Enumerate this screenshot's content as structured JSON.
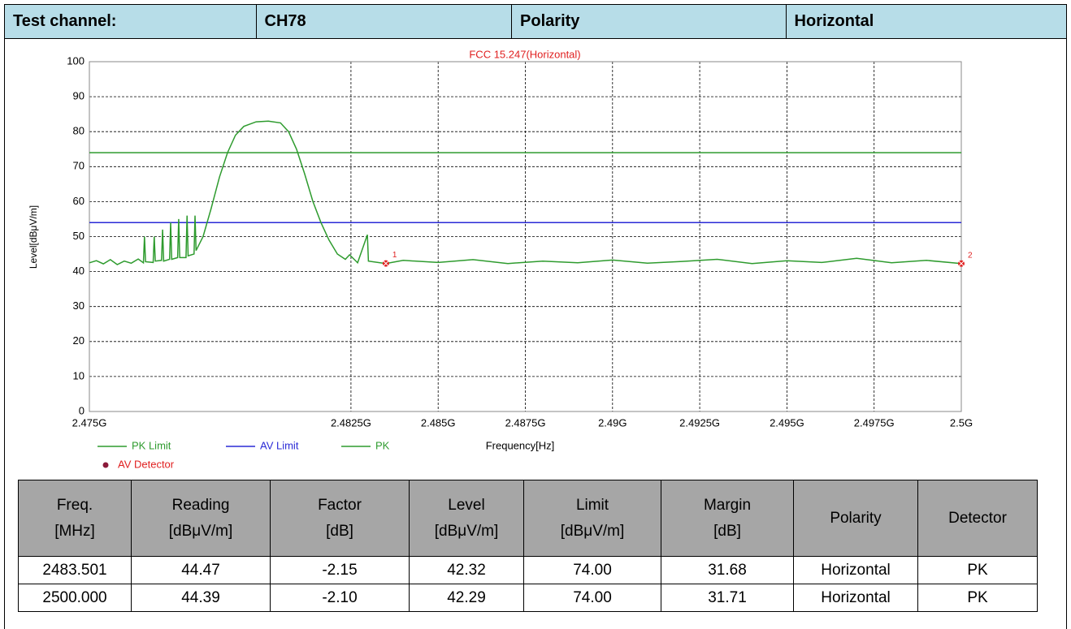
{
  "header": {
    "cells": [
      "Test channel:",
      "CH78",
      "Polarity",
      "Horizontal"
    ]
  },
  "chart_data": {
    "type": "line",
    "title": "FCC 15.247(Horizontal)",
    "xlabel": "Frequency[Hz]",
    "ylabel": "Level[dBμV/m]",
    "xlim": [
      2475000000,
      2500000000
    ],
    "ylim": [
      0,
      100
    ],
    "xticks": [
      {
        "value": 2475000000,
        "label": "2.475G"
      },
      {
        "value": 2482500000,
        "label": "2.4825G"
      },
      {
        "value": 2485000000,
        "label": "2.485G"
      },
      {
        "value": 2487500000,
        "label": "2.4875G"
      },
      {
        "value": 2490000000,
        "label": "2.49G"
      },
      {
        "value": 2492500000,
        "label": "2.4925G"
      },
      {
        "value": 2495000000,
        "label": "2.495G"
      },
      {
        "value": 2497500000,
        "label": "2.4975G"
      },
      {
        "value": 2500000000,
        "label": "2.5G"
      }
    ],
    "yticks": [
      0,
      10,
      20,
      30,
      40,
      50,
      60,
      70,
      80,
      90,
      100
    ],
    "grid": true,
    "series": [
      {
        "name": "PK Limit",
        "color": "#2e9b2e",
        "x": [
          2475000000,
          2500000000
        ],
        "values": [
          74,
          74
        ]
      },
      {
        "name": "AV Limit",
        "color": "#2a2ad6",
        "x": [
          2475000000,
          2500000000
        ],
        "values": [
          54,
          54
        ]
      },
      {
        "name": "PK",
        "color": "#2e9b2e",
        "x": [
          2475000000,
          2475200000,
          2475400000,
          2475600000,
          2475800000,
          2476000000,
          2476200000,
          2476400000,
          2476550000,
          2476580000,
          2476610000,
          2476830000,
          2476860000,
          2476890000,
          2477070000,
          2477100000,
          2477130000,
          2477300000,
          2477330000,
          2477360000,
          2477530000,
          2477560000,
          2477590000,
          2477770000,
          2477800000,
          2477830000,
          2478000000,
          2478030000,
          2478060000,
          2478260000,
          2478490000,
          2478730000,
          2478960000,
          2479190000,
          2479430000,
          2479780000,
          2480130000,
          2480480000,
          2480710000,
          2480940000,
          2481170000,
          2481410000,
          2481640000,
          2481870000,
          2482110000,
          2482340000,
          2482460000,
          2482690000,
          2482970000,
          2483000000,
          2483500000,
          2484000000,
          2485000000,
          2486000000,
          2487000000,
          2488000000,
          2489000000,
          2490000000,
          2491000000,
          2492000000,
          2493000000,
          2494000000,
          2495000000,
          2496000000,
          2497000000,
          2498000000,
          2499000000,
          2500000000
        ],
        "values": [
          42.5,
          43.1,
          42.2,
          43.4,
          42.0,
          43.0,
          42.4,
          43.6,
          42.5,
          50,
          42.8,
          42.6,
          50,
          43,
          43.2,
          52,
          43,
          43.5,
          54,
          43.5,
          44,
          55,
          44,
          44,
          56,
          44.5,
          45,
          56,
          46,
          50,
          58,
          67,
          74,
          79,
          81.5,
          82.8,
          83,
          82.5,
          80,
          75,
          68,
          60,
          54,
          49,
          45,
          43.5,
          44.8,
          42.5,
          50.5,
          43,
          42.3,
          43.2,
          42.6,
          43.4,
          42.3,
          43.0,
          42.5,
          43.3,
          42.4,
          42.9,
          43.5,
          42.3,
          43.1,
          42.6,
          43.8,
          42.5,
          43.2,
          42.3
        ]
      },
      {
        "name": "AV Detector",
        "color": "#e02020",
        "x": [
          2483501000,
          2500000000
        ],
        "values": [
          42.32,
          42.29
        ],
        "value_labels": [
          "1",
          "2"
        ]
      }
    ]
  },
  "table": {
    "header": [
      [
        "Freq.",
        "[MHz]"
      ],
      [
        "Reading",
        "[dBμV/m]"
      ],
      [
        "Factor",
        "[dB]"
      ],
      [
        "Level",
        "[dBμV/m]"
      ],
      [
        "Limit",
        "[dBμV/m]"
      ],
      [
        "Margin",
        "[dB]"
      ],
      [
        "Polarity"
      ],
      [
        "Detector"
      ]
    ],
    "rows": [
      [
        "2483.501",
        "44.47",
        "-2.15",
        "42.32",
        "74.00",
        "31.68",
        "Horizontal",
        "PK"
      ],
      [
        "2500.000",
        "44.39",
        "-2.10",
        "42.29",
        "74.00",
        "31.71",
        "Horizontal",
        "PK"
      ]
    ]
  }
}
